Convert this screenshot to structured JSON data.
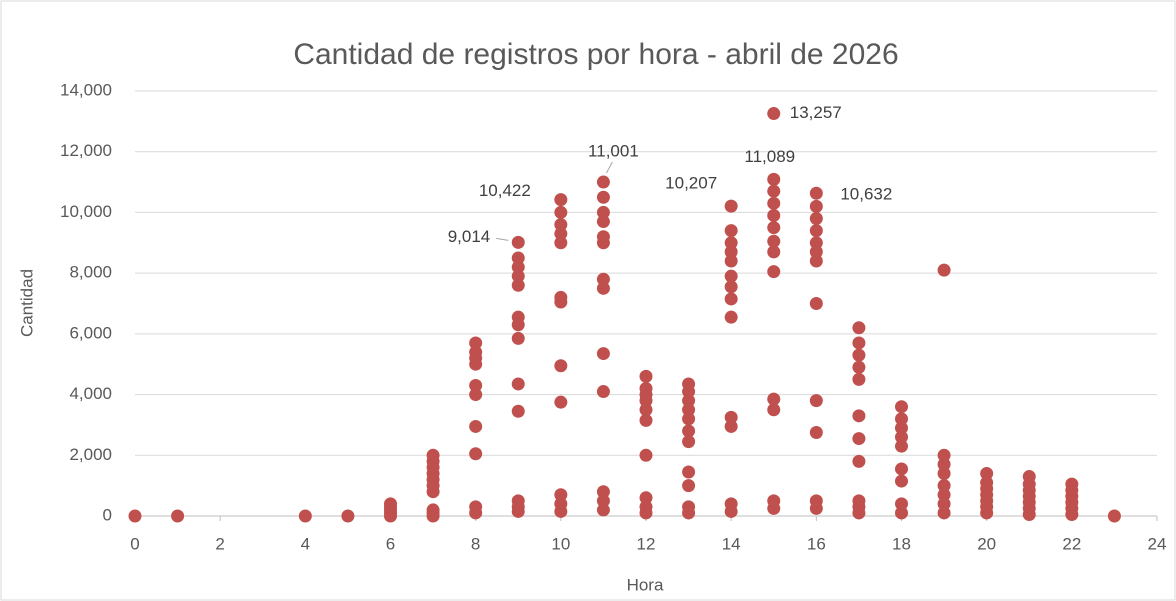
{
  "chart_data": {
    "type": "scatter",
    "title": "Cantidad de registros por hora - abril de 2026",
    "x_label": "Hora",
    "y_label": "Cantidad",
    "color": "#c0504d",
    "grid": true,
    "xlim": [
      0,
      24
    ],
    "xticks": [
      0,
      2,
      4,
      6,
      8,
      10,
      12,
      14,
      16,
      18,
      20,
      22,
      24
    ],
    "ylim": [
      0,
      14000
    ],
    "yticks": [
      0,
      {
        "value": 2000,
        "label": "2,000"
      },
      {
        "value": 4000,
        "label": "4,000"
      },
      {
        "value": 6000,
        "label": "6,000"
      },
      {
        "value": 8000,
        "label": "8,000"
      },
      {
        "value": 10000,
        "label": "10,000"
      },
      {
        "value": 12000,
        "label": "12,000"
      },
      {
        "value": 14000,
        "label": "14,000"
      }
    ],
    "x": [
      0,
      1,
      4,
      5,
      6,
      6,
      6,
      6,
      6,
      7,
      7,
      7,
      7,
      7,
      7,
      7,
      7,
      7,
      7,
      8,
      8,
      8,
      8,
      8,
      8,
      8,
      8,
      8,
      8,
      9,
      9,
      9,
      9,
      9,
      9,
      9,
      9,
      9,
      9,
      9,
      9,
      9,
      10,
      10,
      10,
      10,
      10,
      10,
      10,
      10,
      10,
      10,
      10,
      10,
      11,
      11,
      11,
      11,
      11,
      11,
      11,
      11,
      11,
      11,
      11,
      11,
      11,
      12,
      12,
      12,
      12,
      12,
      12,
      12,
      12,
      12,
      12,
      13,
      13,
      13,
      13,
      13,
      13,
      13,
      13,
      13,
      13,
      13,
      14,
      14,
      14,
      14,
      14,
      14,
      14,
      14,
      14,
      14,
      14,
      14,
      14,
      15,
      15,
      15,
      15,
      15,
      15,
      15,
      15,
      15,
      15,
      15,
      15,
      15,
      16,
      16,
      16,
      16,
      16,
      16,
      16,
      16,
      16,
      16,
      16,
      16,
      17,
      17,
      17,
      17,
      17,
      17,
      17,
      17,
      17,
      17,
      17,
      18,
      18,
      18,
      18,
      18,
      18,
      18,
      18,
      18,
      19,
      19,
      19,
      19,
      19,
      19,
      19,
      19,
      20,
      20,
      20,
      20,
      20,
      20,
      20,
      21,
      21,
      21,
      21,
      21,
      21,
      21,
      22,
      22,
      22,
      22,
      22,
      22,
      23
    ],
    "values": [
      0,
      0,
      0,
      0,
      0,
      100,
      200,
      300,
      400,
      0,
      100,
      200,
      800,
      1000,
      1200,
      1400,
      1600,
      1800,
      2000,
      100,
      300,
      2050,
      2950,
      4000,
      4300,
      5000,
      5200,
      5400,
      5700,
      150,
      300,
      500,
      3450,
      4350,
      5850,
      6300,
      6550,
      7600,
      7900,
      8200,
      8500,
      9014,
      150,
      400,
      700,
      3750,
      4950,
      7050,
      7200,
      9000,
      9300,
      9600,
      10000,
      10422,
      200,
      500,
      800,
      4100,
      5350,
      7500,
      7800,
      9000,
      9200,
      9700,
      10000,
      10500,
      11001,
      100,
      300,
      600,
      2000,
      3150,
      3500,
      3800,
      4000,
      4200,
      4600,
      100,
      300,
      1000,
      1450,
      2450,
      2800,
      3200,
      3500,
      3800,
      4100,
      4350,
      150,
      400,
      2950,
      3250,
      6550,
      7150,
      7550,
      7900,
      8400,
      8700,
      9000,
      9400,
      10207,
      250,
      500,
      3500,
      3850,
      8050,
      8700,
      9050,
      9500,
      9900,
      10300,
      10700,
      11089,
      13257,
      250,
      500,
      2750,
      3800,
      7000,
      8400,
      8700,
      9000,
      9400,
      9800,
      10200,
      10632,
      100,
      300,
      500,
      1800,
      2550,
      3300,
      4500,
      4900,
      5300,
      5700,
      6200,
      100,
      400,
      1150,
      1550,
      2300,
      2600,
      2900,
      3200,
      3600,
      100,
      400,
      700,
      1000,
      1400,
      1700,
      2000,
      8100,
      100,
      300,
      500,
      700,
      900,
      1100,
      1400,
      50,
      250,
      450,
      650,
      850,
      1050,
      1300,
      50,
      250,
      450,
      650,
      850,
      1050,
      0
    ],
    "value_labels": [
      null,
      null,
      null,
      null,
      null,
      null,
      null,
      null,
      null,
      null,
      null,
      null,
      null,
      null,
      null,
      null,
      null,
      null,
      null,
      null,
      null,
      null,
      null,
      null,
      null,
      null,
      null,
      null,
      null,
      null,
      null,
      null,
      null,
      null,
      null,
      null,
      null,
      null,
      null,
      null,
      null,
      "9,014",
      null,
      null,
      null,
      null,
      null,
      null,
      null,
      null,
      null,
      null,
      null,
      "10,422",
      null,
      null,
      null,
      null,
      null,
      null,
      null,
      null,
      null,
      null,
      null,
      null,
      "11,001",
      null,
      null,
      null,
      null,
      null,
      null,
      null,
      null,
      null,
      null,
      null,
      null,
      null,
      null,
      null,
      null,
      null,
      null,
      null,
      null,
      null,
      null,
      null,
      null,
      null,
      null,
      null,
      null,
      null,
      null,
      null,
      null,
      null,
      "10,207",
      null,
      null,
      null,
      null,
      null,
      null,
      null,
      null,
      null,
      null,
      null,
      "11,089",
      "13,257",
      null,
      null,
      null,
      null,
      null,
      null,
      null,
      null,
      null,
      null,
      null,
      "10,632",
      null,
      null,
      null,
      null,
      null,
      null,
      null,
      null,
      null,
      null,
      null,
      null,
      null,
      null,
      null,
      null,
      null,
      null,
      null,
      null,
      null,
      null,
      null,
      null,
      null,
      null,
      null,
      null,
      null,
      null,
      null,
      null,
      null,
      null,
      null,
      null,
      null,
      null,
      null,
      null,
      null,
      null,
      null,
      null,
      null,
      null,
      null,
      null,
      null
    ]
  }
}
